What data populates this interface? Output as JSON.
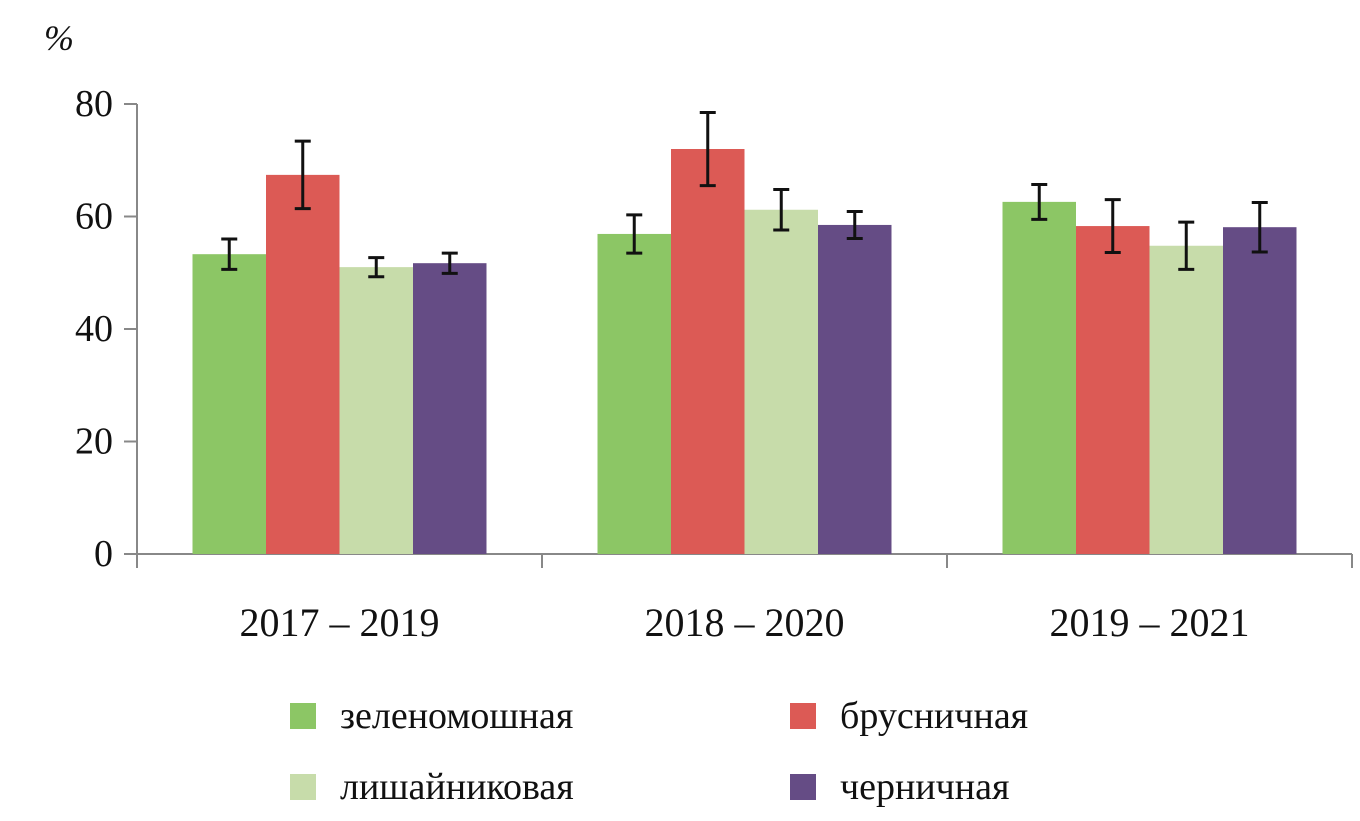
{
  "chart_data": {
    "type": "bar",
    "title": "",
    "ylabel": "%",
    "xlabel": "",
    "ylim": [
      0,
      80
    ],
    "yticks": [
      0,
      20,
      40,
      60,
      80
    ],
    "categories": [
      "2017  – 2019",
      "2018  – 2020",
      "2019  – 2021"
    ],
    "series": [
      {
        "name": "зеленомошная",
        "color": "#8cc665",
        "values": [
          53.3,
          56.9,
          62.6
        ],
        "errors": [
          2.7,
          3.4,
          3.1
        ]
      },
      {
        "name": "брусничная",
        "color": "#dc5a55",
        "values": [
          67.4,
          72.0,
          58.3
        ],
        "errors": [
          6.0,
          6.5,
          4.7
        ]
      },
      {
        "name": "лишайниковая",
        "color": "#c7dcaa",
        "values": [
          51.0,
          61.2,
          54.8
        ],
        "errors": [
          1.7,
          3.6,
          4.2
        ]
      },
      {
        "name": "черничная",
        "color": "#654c85",
        "values": [
          51.7,
          58.5,
          58.1
        ],
        "errors": [
          1.8,
          2.4,
          4.4
        ]
      }
    ],
    "legend_position": "bottom",
    "grid": false
  }
}
